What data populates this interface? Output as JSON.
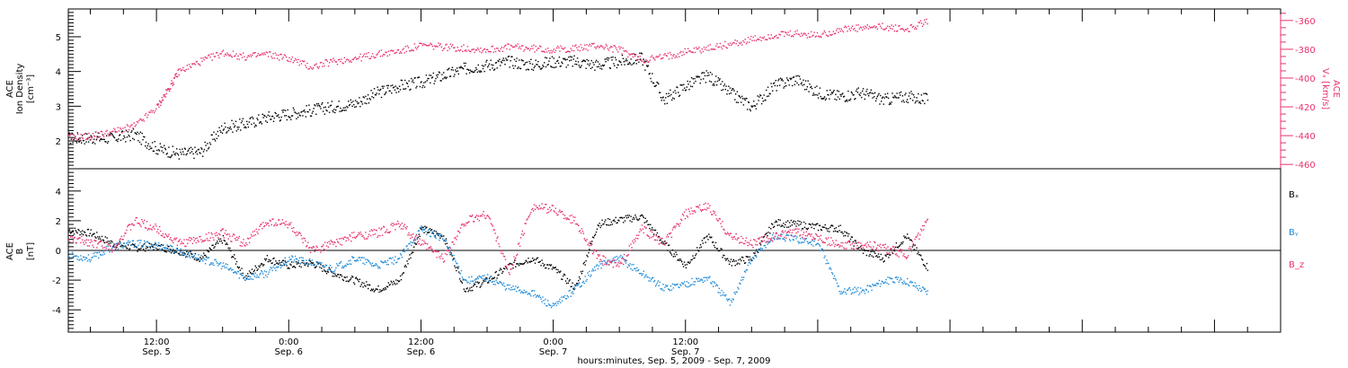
{
  "chart_data": [
    {
      "type": "scatter",
      "panel": "top",
      "ylabel_left": [
        "ACE",
        "Ion Density",
        "[cm⁻³]"
      ],
      "ylabel_right": [
        "ACE",
        "Vₓ [km/s]"
      ],
      "ylim_left": [
        1.2,
        5.8
      ],
      "yticks_left": [
        2,
        3,
        4,
        5
      ],
      "ylim_right": [
        -463,
        -352
      ],
      "yticks_right": [
        -460,
        -440,
        -420,
        -400,
        -380,
        -360
      ],
      "x_hours_range": [
        4,
        114
      ],
      "colors": {
        "density": "#000000",
        "vx": "#e8336b"
      },
      "series": [
        {
          "axis": "left",
          "color": "#000000",
          "x_hours": [
            4,
            6,
            8,
            10,
            12,
            14,
            16,
            18,
            20,
            22,
            24,
            26,
            28,
            30,
            32,
            34,
            36,
            38,
            40,
            42,
            44,
            46,
            48,
            50,
            52,
            54,
            56,
            58,
            60,
            62,
            64,
            66,
            68,
            70,
            72,
            74,
            76,
            78,
            80,
            82
          ],
          "values": [
            2.1,
            2.1,
            2.1,
            2.2,
            1.8,
            1.65,
            1.7,
            2.4,
            2.5,
            2.7,
            2.8,
            2.9,
            3.0,
            3.1,
            3.4,
            3.6,
            3.7,
            3.9,
            4.1,
            4.2,
            4.3,
            4.2,
            4.3,
            4.3,
            4.2,
            4.3,
            4.4,
            3.2,
            3.6,
            3.9,
            3.4,
            3.0,
            3.6,
            3.8,
            3.4,
            3.3,
            3.4,
            3.2,
            3.3,
            3.2
          ]
        },
        {
          "axis": "right",
          "color": "#e8336b",
          "x_hours": [
            4,
            6,
            8,
            10,
            12,
            13,
            14,
            16,
            18,
            20,
            22,
            24,
            26,
            28,
            30,
            32,
            34,
            36,
            38,
            40,
            42,
            44,
            46,
            48,
            50,
            52,
            54,
            56,
            58,
            60,
            62,
            64,
            66,
            68,
            70,
            72,
            74,
            76,
            78,
            80,
            82
          ],
          "values": [
            -441,
            -440,
            -437,
            -433,
            -420,
            -408,
            -395,
            -388,
            -382,
            -385,
            -383,
            -386,
            -392,
            -388,
            -386,
            -383,
            -381,
            -377,
            -378,
            -379,
            -380,
            -378,
            -379,
            -380,
            -379,
            -377,
            -380,
            -387,
            -385,
            -381,
            -379,
            -376,
            -373,
            -370,
            -369,
            -370,
            -366,
            -365,
            -364,
            -366,
            -360
          ]
        }
      ]
    },
    {
      "type": "scatter",
      "panel": "bottom",
      "ylabel": [
        "ACE",
        "B",
        "[nT]"
      ],
      "ylim": [
        -5.5,
        5.5
      ],
      "yticks": [
        -4,
        -2,
        0,
        2,
        4
      ],
      "x_hours_range": [
        4,
        114
      ],
      "legend": {
        "position": "right",
        "entries": [
          {
            "label": "Bₓ",
            "color": "#000000"
          },
          {
            "label": "Bᵧ",
            "color": "#1f8ad8"
          },
          {
            "label": "B_z",
            "color": "#e8336b"
          }
        ]
      },
      "series": [
        {
          "color": "#000000",
          "x_hours": [
            4,
            6,
            8,
            10,
            12,
            14,
            16,
            18,
            20,
            22,
            24,
            26,
            28,
            30,
            32,
            34,
            36,
            38,
            40,
            42,
            44,
            46,
            48,
            50,
            52,
            54,
            56,
            58,
            60,
            62,
            64,
            66,
            68,
            70,
            72,
            74,
            76,
            78,
            80,
            82
          ],
          "values": [
            1.4,
            1.2,
            0.5,
            0.2,
            0.3,
            0.0,
            -0.5,
            0.8,
            -1.8,
            -0.5,
            -1.0,
            -0.8,
            -1.5,
            -2.0,
            -2.6,
            -2.0,
            1.5,
            1.0,
            -2.6,
            -2.0,
            -1.0,
            -0.5,
            -1.2,
            -2.5,
            1.8,
            2.1,
            2.3,
            0.5,
            -1.0,
            1.0,
            -0.8,
            -0.5,
            1.9,
            1.8,
            1.6,
            1.5,
            0.0,
            -0.5,
            1.0,
            -1.2
          ]
        },
        {
          "color": "#1f8ad8",
          "x_hours": [
            4,
            6,
            8,
            10,
            12,
            14,
            16,
            18,
            20,
            22,
            24,
            26,
            28,
            30,
            32,
            34,
            36,
            38,
            40,
            42,
            44,
            46,
            48,
            50,
            52,
            54,
            56,
            58,
            60,
            62,
            64,
            66,
            68,
            70,
            72,
            74,
            76,
            78,
            80,
            82
          ],
          "values": [
            -0.3,
            -0.5,
            0.3,
            0.5,
            0.4,
            0.0,
            -0.5,
            -1.0,
            -1.8,
            -1.5,
            -0.5,
            -0.8,
            -1.2,
            -0.5,
            -1.0,
            -0.5,
            1.5,
            0.8,
            -2.0,
            -1.8,
            -2.5,
            -2.8,
            -3.8,
            -2.5,
            -1.0,
            -0.5,
            -1.5,
            -2.5,
            -2.2,
            -1.8,
            -3.5,
            -0.5,
            1.0,
            0.8,
            0.5,
            -2.7,
            -2.7,
            -2.0,
            -2.0,
            -2.8
          ]
        },
        {
          "color": "#e8336b",
          "x_hours": [
            4,
            6,
            8,
            10,
            12,
            14,
            16,
            18,
            20,
            22,
            24,
            26,
            28,
            30,
            32,
            34,
            36,
            38,
            40,
            42,
            44,
            46,
            48,
            50,
            52,
            54,
            56,
            58,
            60,
            62,
            64,
            66,
            68,
            70,
            72,
            74,
            76,
            78,
            80,
            82
          ],
          "values": [
            0.8,
            0.6,
            0.2,
            2.0,
            1.5,
            0.5,
            0.8,
            1.2,
            0.5,
            2.0,
            1.8,
            0.0,
            0.5,
            1.0,
            1.2,
            1.8,
            0.5,
            -0.5,
            2.0,
            2.5,
            -1.5,
            3.0,
            2.8,
            2.0,
            -0.5,
            -1.0,
            1.5,
            0.5,
            2.5,
            3.0,
            1.0,
            0.5,
            1.0,
            1.2,
            1.0,
            0.3,
            0.5,
            0.2,
            -0.3,
            2.1
          ]
        }
      ]
    }
  ],
  "x_axis": {
    "ticks": [
      {
        "hours": 12,
        "time": "12:00",
        "date": "Sep. 5"
      },
      {
        "hours": 24,
        "time": "0:00",
        "date": "Sep. 6"
      },
      {
        "hours": 36,
        "time": "12:00",
        "date": "Sep. 6"
      },
      {
        "hours": 48,
        "time": "0:00",
        "date": "Sep. 7"
      },
      {
        "hours": 60,
        "time": "12:00",
        "date": "Sep. 7"
      }
    ],
    "xlabel": "hours:minutes, Sep. 5, 2009 - Sep. 7, 2009"
  }
}
